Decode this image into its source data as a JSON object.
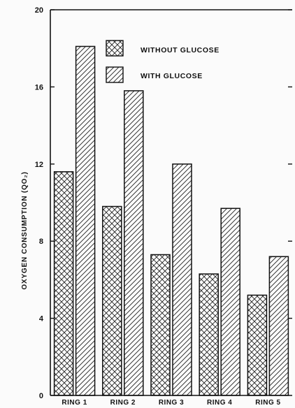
{
  "chart_data": {
    "type": "bar",
    "title": "",
    "xlabel": "",
    "ylabel": "OXYGEN CONSUMPTION (QO₂)",
    "ylim": [
      0,
      20
    ],
    "yticks": [
      "0",
      "4",
      "8",
      "12",
      "16",
      "20"
    ],
    "categories": [
      "RING 1",
      "RING 2",
      "RING 3",
      "RING 4",
      "RING 5"
    ],
    "series": [
      {
        "name": "WITHOUT GLUCOSE",
        "pattern": "crosshatch",
        "values": [
          11.6,
          9.8,
          7.3,
          6.3,
          5.2
        ]
      },
      {
        "name": "WITH GLUCOSE",
        "pattern": "diagonal",
        "values": [
          18.1,
          15.8,
          12.0,
          9.7,
          7.2
        ]
      }
    ],
    "grid": false,
    "legend": "top-center",
    "colors": {
      "ink": "#111111",
      "background": "#fbfbfb"
    }
  }
}
